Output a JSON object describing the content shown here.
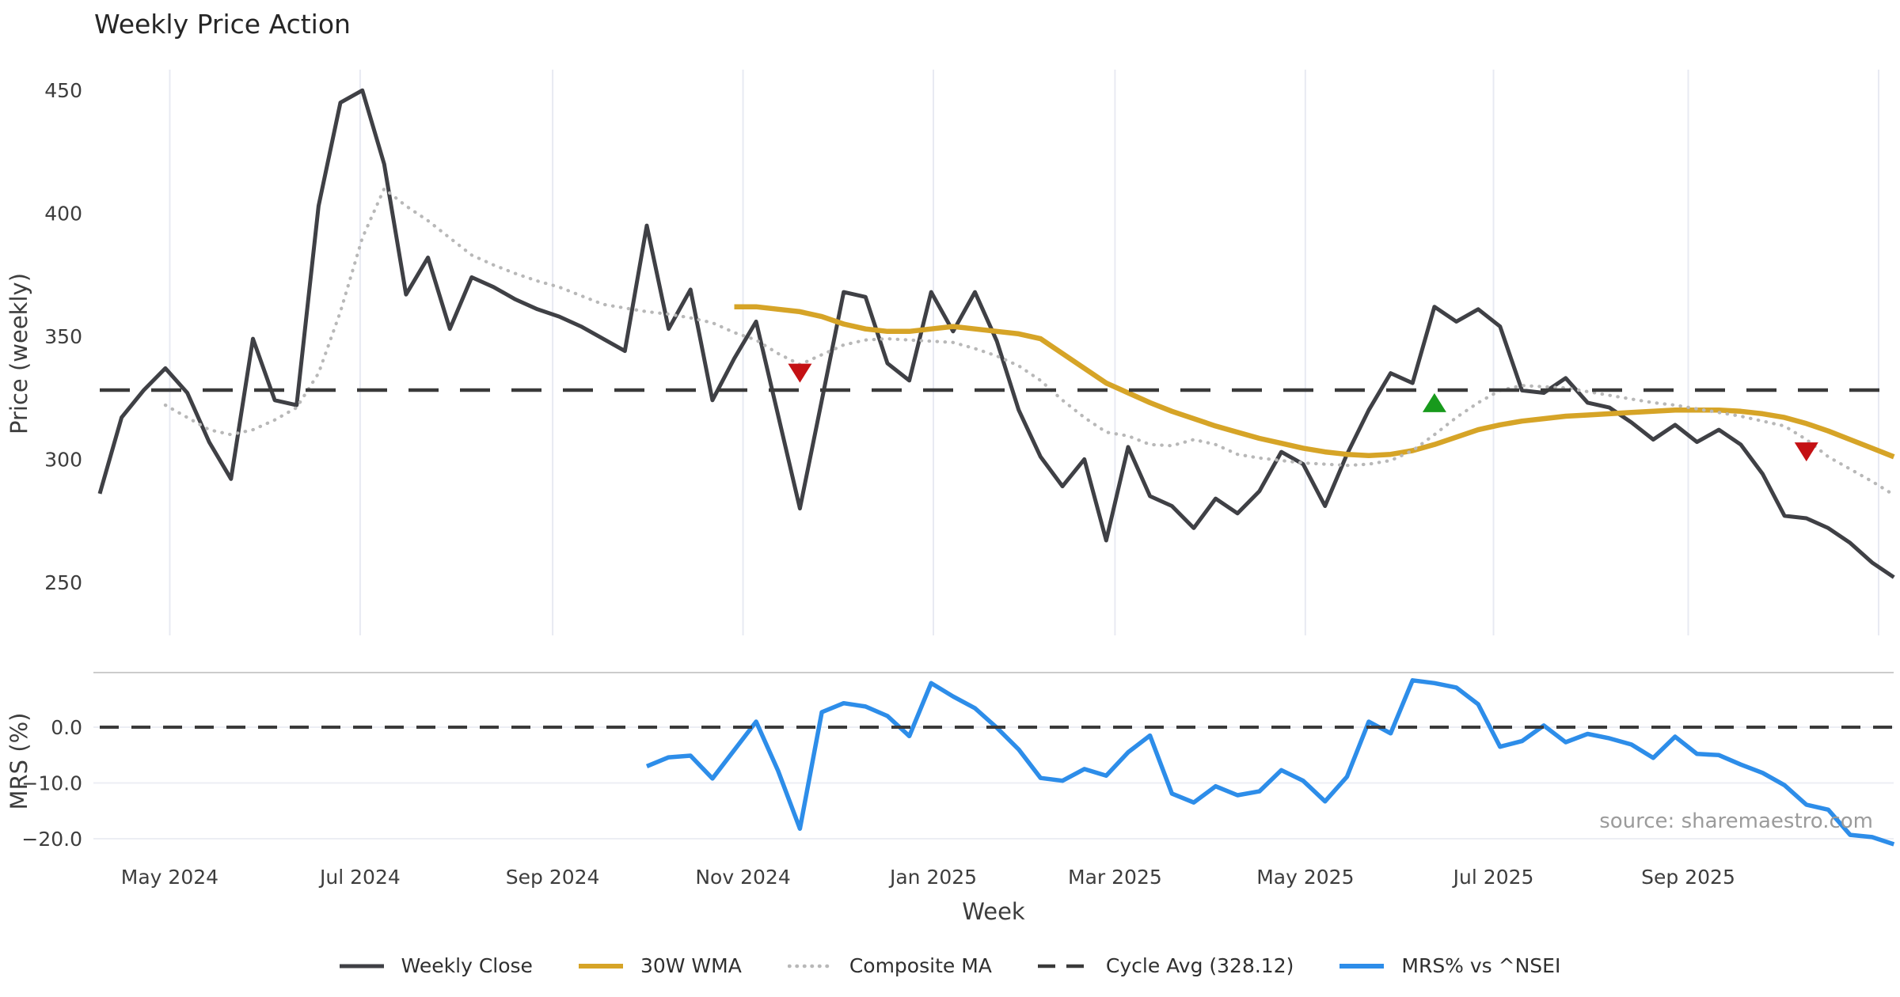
{
  "title": "Weekly Price Action",
  "source_note": "source: sharemaestro.com",
  "chart_data": {
    "type": "line",
    "title": "Weekly Price Action",
    "xlabel": "Week",
    "grid": "vertical-months-on-price-panel, horizontal-on-mrs-panel",
    "legend_position": "bottom-center",
    "x": {
      "start_date": "2024-04-08",
      "frequency": "weekly",
      "n_points": 83,
      "ticks": [
        {
          "label": "May 2024",
          "week": 3.2
        },
        {
          "label": "Jul 2024",
          "week": 11.9
        },
        {
          "label": "Sep 2024",
          "week": 20.7
        },
        {
          "label": "Nov 2024",
          "week": 29.4
        },
        {
          "label": "Jan 2025",
          "week": 38.1
        },
        {
          "label": "Mar 2025",
          "week": 46.4
        },
        {
          "label": "May 2025",
          "week": 55.1
        },
        {
          "label": "Jul 2025",
          "week": 63.7
        },
        {
          "label": "Sep 2025",
          "week": 72.6
        },
        {
          "label": "",
          "week": 81.3
        }
      ]
    },
    "panels": [
      {
        "name": "price",
        "ylabel": "Price (weekly)",
        "ylim": [
          228,
          458
        ],
        "yticks": [
          {
            "v": 450,
            "label": "450"
          },
          {
            "v": 400,
            "label": "400"
          },
          {
            "v": 350,
            "label": "350"
          },
          {
            "v": 300,
            "label": "300"
          },
          {
            "v": 250,
            "label": "250"
          }
        ]
      },
      {
        "name": "mrs",
        "ylabel": "MRS (%)",
        "ylim": [
          -23.2,
          9.8
        ],
        "yticks": [
          {
            "v": 0,
            "label": "0.0"
          },
          {
            "v": -10,
            "label": "−10.0"
          },
          {
            "v": -20,
            "label": "−20.0"
          }
        ]
      }
    ],
    "series": [
      {
        "name": "Weekly Close",
        "panel": "price",
        "color": "#3f4045",
        "style": "solid",
        "width": 5,
        "values": [
          286,
          317,
          328,
          337,
          327,
          307,
          292,
          349,
          324,
          322,
          403,
          445,
          450,
          420,
          367,
          382,
          353,
          374,
          370,
          365,
          361,
          358,
          354,
          349,
          344,
          395,
          353,
          369,
          324,
          341,
          356,
          318,
          280,
          324,
          368,
          366,
          339,
          332,
          368,
          352,
          368,
          348,
          320,
          301,
          289,
          300,
          267,
          305,
          285,
          281,
          272,
          284,
          278,
          287,
          303,
          298,
          281,
          302,
          320,
          335,
          331,
          362,
          356,
          361,
          354,
          328,
          327,
          333,
          323,
          321,
          315,
          308,
          314,
          307,
          312,
          306,
          294,
          277,
          276,
          272,
          266,
          258,
          252
        ]
      },
      {
        "name": "30W WMA",
        "panel": "price",
        "color": "#d6a427",
        "style": "solid",
        "width": 6.5,
        "values": [
          null,
          null,
          null,
          null,
          null,
          null,
          null,
          null,
          null,
          null,
          null,
          null,
          null,
          null,
          null,
          null,
          null,
          null,
          null,
          null,
          null,
          null,
          null,
          null,
          null,
          null,
          null,
          null,
          null,
          362,
          362,
          361,
          360,
          358,
          355,
          353,
          352,
          352,
          353,
          354,
          353,
          352,
          351,
          349,
          343,
          337,
          331,
          327,
          323,
          319.5,
          316.5,
          313.5,
          311,
          308.5,
          306.5,
          304.5,
          303,
          302,
          301.5,
          302,
          303.5,
          306,
          309,
          312,
          314,
          315.5,
          316.5,
          317.5,
          318,
          318.5,
          319,
          319.5,
          320,
          320,
          320,
          319.5,
          318.5,
          317,
          314.5,
          311.5,
          308,
          304.5,
          301
        ]
      },
      {
        "name": "Composite MA",
        "panel": "price",
        "color": "#b8b8b8",
        "style": "dotted",
        "width": 4.2,
        "values": [
          null,
          null,
          null,
          322,
          317,
          312,
          310,
          312,
          316,
          321,
          335,
          360,
          390,
          410,
          403,
          397,
          390,
          383,
          379,
          375.5,
          372.5,
          370,
          366.5,
          363,
          361.5,
          360,
          359,
          357.5,
          355.5,
          351.5,
          348.5,
          343,
          338.5,
          342.5,
          346.5,
          348.5,
          349,
          348.5,
          348,
          347.5,
          345,
          342,
          338,
          332,
          324,
          317,
          311,
          309.5,
          306,
          305.5,
          308,
          306,
          302,
          300.5,
          299.5,
          298.5,
          298,
          297.5,
          298,
          299.5,
          303.5,
          310,
          317,
          323,
          328,
          330,
          329.5,
          329,
          327.5,
          326,
          324.5,
          323,
          322,
          320.5,
          319,
          317.5,
          315.5,
          313.5,
          308,
          301,
          296,
          291,
          285.5
        ]
      },
      {
        "name": "Cycle Avg (328.12)",
        "panel": "price",
        "color": "#3a3a3a",
        "style": "dashed",
        "width": 4.5,
        "constant": 328.12
      },
      {
        "name": "MRS% vs ^NSEI",
        "panel": "mrs",
        "color": "#2d8de9",
        "style": "solid",
        "width": 5.5,
        "values": [
          null,
          null,
          null,
          null,
          null,
          null,
          null,
          null,
          null,
          null,
          null,
          null,
          null,
          null,
          null,
          null,
          null,
          null,
          null,
          null,
          null,
          null,
          null,
          null,
          null,
          -7.0,
          -5.4,
          -5.1,
          -9.2,
          -4.1,
          1.0,
          -7.8,
          -18.2,
          2.7,
          4.3,
          3.7,
          2.0,
          -1.6,
          7.9,
          5.5,
          3.4,
          -0.1,
          -4.0,
          -9.1,
          -9.6,
          -7.5,
          -8.7,
          -4.5,
          -1.5,
          -11.9,
          -13.5,
          -10.6,
          -12.2,
          -11.5,
          -7.7,
          -9.6,
          -13.3,
          -8.9,
          1.0,
          -1.1,
          8.4,
          7.9,
          7.1,
          4.1,
          -3.5,
          -2.5,
          0.3,
          -2.7,
          -1.2,
          -2.0,
          -3.1,
          -5.5,
          -1.7,
          -4.8,
          -5.0,
          -6.7,
          -8.2,
          -10.4,
          -13.9,
          -14.8,
          -19.3,
          -19.7,
          -21.0
        ]
      },
      {
        "name": "MRS zero line",
        "panel": "mrs",
        "color": "#3a3a3a",
        "style": "dashed",
        "width": 4,
        "constant": 0
      }
    ],
    "markers": [
      {
        "week": 32,
        "value": 335,
        "shape": "triangle-down",
        "color": "#c41114"
      },
      {
        "week": 61,
        "value": 323,
        "shape": "triangle-up",
        "color": "#189a1c"
      },
      {
        "week": 78,
        "value": 303,
        "shape": "triangle-down",
        "color": "#c41114"
      }
    ],
    "legend": [
      "Weekly Close",
      "30W WMA",
      "Composite MA",
      "Cycle Avg (328.12)",
      "MRS% vs ^NSEI"
    ]
  }
}
